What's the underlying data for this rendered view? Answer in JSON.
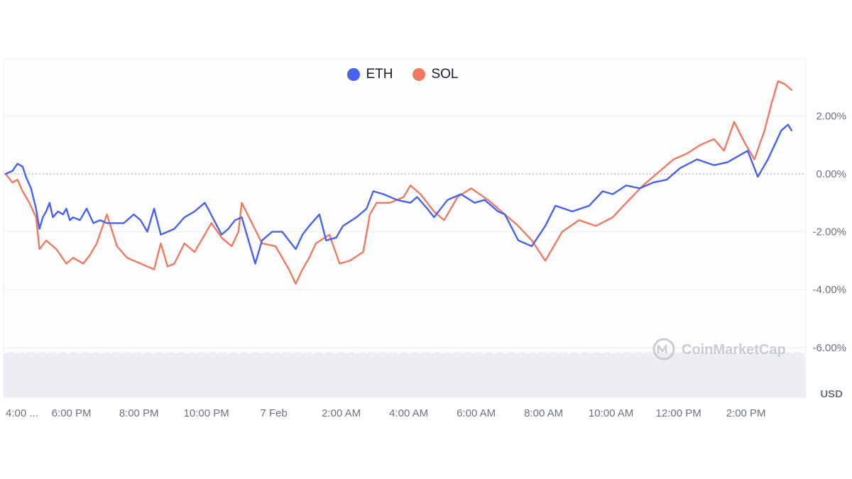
{
  "legend": [
    {
      "name": "ETH",
      "color": "#4861ef"
    },
    {
      "name": "SOL",
      "color": "#ef7a62"
    }
  ],
  "watermark": {
    "text": "CoinMarketCap",
    "icon": "coinmarketcap-logo-icon"
  },
  "y_unit_label": "USD",
  "chart_data": {
    "type": "line",
    "title": "",
    "x_tick_labels": [
      "4:00 ...",
      "6:00 PM",
      "8:00 PM",
      "10:00 PM",
      "7 Feb",
      "2:00 AM",
      "4:00 AM",
      "6:00 AM",
      "8:00 AM",
      "10:00 AM",
      "12:00 PM",
      "2:00 PM"
    ],
    "y_tick_labels": [
      "2.00%",
      "0.00%",
      "-2.00%",
      "-4.00%",
      "-6.00%"
    ],
    "y_ticks": [
      2,
      0,
      -2,
      -4,
      -6
    ],
    "ylim": [
      -7.8,
      4
    ],
    "xlim": [
      0,
      23.4
    ],
    "x_units": "hours since 4:00 PM",
    "reference_line": 0,
    "grid": true,
    "legend_position": "top-center",
    "series": [
      {
        "name": "ETH",
        "color": "#4861ef",
        "x": [
          0,
          0.2,
          0.35,
          0.5,
          0.6,
          0.75,
          0.9,
          1.0,
          1.1,
          1.2,
          1.3,
          1.4,
          1.55,
          1.7,
          1.8,
          1.9,
          2.0,
          2.2,
          2.4,
          2.6,
          2.8,
          3.0,
          3.2,
          3.5,
          3.8,
          4.0,
          4.2,
          4.4,
          4.6,
          4.8,
          5.0,
          5.3,
          5.6,
          5.9,
          6.0,
          6.4,
          6.6,
          6.8,
          7.0,
          7.4,
          7.6,
          7.9,
          8.2,
          8.6,
          8.8,
          9.0,
          9.3,
          9.5,
          9.8,
          10.0,
          10.4,
          10.7,
          10.9,
          11.2,
          11.6,
          12.0,
          12.2,
          12.5,
          12.7,
          13.1,
          13.5,
          13.9,
          14.2,
          14.6,
          14.8,
          15.2,
          15.6,
          16.0,
          16.3,
          16.8,
          17.3,
          17.7,
          18.0,
          18.4,
          18.8,
          19.2,
          19.6,
          20.0,
          20.5,
          21.0,
          21.4,
          22.0,
          22.3,
          22.6,
          22.8,
          23.0,
          23.2,
          23.3
        ],
        "values": [
          0.0,
          0.1,
          0.35,
          0.25,
          -0.1,
          -0.5,
          -1.2,
          -1.9,
          -1.5,
          -1.3,
          -1.0,
          -1.5,
          -1.3,
          -1.4,
          -1.2,
          -1.6,
          -1.5,
          -1.6,
          -1.2,
          -1.7,
          -1.6,
          -1.7,
          -1.7,
          -1.7,
          -1.4,
          -1.6,
          -2.0,
          -1.2,
          -2.1,
          -2.0,
          -1.9,
          -1.5,
          -1.3,
          -1.0,
          -1.2,
          -2.1,
          -1.9,
          -1.6,
          -1.5,
          -3.1,
          -2.3,
          -2.0,
          -2.0,
          -2.6,
          -2.1,
          -1.8,
          -1.4,
          -2.3,
          -2.2,
          -1.8,
          -1.5,
          -1.2,
          -0.6,
          -0.7,
          -0.9,
          -1.0,
          -0.8,
          -1.2,
          -1.5,
          -0.9,
          -0.7,
          -1.0,
          -0.9,
          -1.3,
          -1.4,
          -2.3,
          -2.5,
          -1.8,
          -1.1,
          -1.3,
          -1.1,
          -0.6,
          -0.7,
          -0.4,
          -0.5,
          -0.3,
          -0.2,
          0.2,
          0.5,
          0.3,
          0.4,
          0.8,
          -0.1,
          0.5,
          1.0,
          1.5,
          1.7,
          1.5
        ]
      },
      {
        "name": "SOL",
        "color": "#ef7a62",
        "x": [
          0,
          0.2,
          0.35,
          0.5,
          0.7,
          0.9,
          1.0,
          1.2,
          1.5,
          1.8,
          2.0,
          2.3,
          2.5,
          2.7,
          3.0,
          3.3,
          3.6,
          3.8,
          4.0,
          4.2,
          4.4,
          4.6,
          4.8,
          5.0,
          5.3,
          5.6,
          5.9,
          6.1,
          6.4,
          6.7,
          6.9,
          7.0,
          7.3,
          7.6,
          8.0,
          8.4,
          8.6,
          8.8,
          9.0,
          9.2,
          9.6,
          9.9,
          10.2,
          10.6,
          10.8,
          11.0,
          11.4,
          11.8,
          12.0,
          12.3,
          12.7,
          13.0,
          13.4,
          13.8,
          14.3,
          14.8,
          15.2,
          15.6,
          16.0,
          16.5,
          17.0,
          17.5,
          18.0,
          18.4,
          18.9,
          19.4,
          19.8,
          20.2,
          20.6,
          21.0,
          21.3,
          21.6,
          21.9,
          22.2,
          22.5,
          22.7,
          22.9,
          23.1,
          23.3
        ],
        "values": [
          0.0,
          -0.3,
          -0.2,
          -0.6,
          -1.0,
          -1.5,
          -2.6,
          -2.3,
          -2.6,
          -3.1,
          -2.9,
          -3.1,
          -2.8,
          -2.4,
          -1.4,
          -2.5,
          -2.9,
          -3.0,
          -3.1,
          -3.2,
          -3.3,
          -2.4,
          -3.2,
          -3.1,
          -2.4,
          -2.7,
          -2.1,
          -1.7,
          -2.2,
          -2.5,
          -2.0,
          -1.0,
          -1.7,
          -2.4,
          -2.5,
          -3.3,
          -3.8,
          -3.3,
          -2.9,
          -2.4,
          -2.1,
          -3.1,
          -3.0,
          -2.7,
          -1.4,
          -1.0,
          -1.0,
          -0.8,
          -0.4,
          -0.7,
          -1.3,
          -1.6,
          -0.8,
          -0.5,
          -0.9,
          -1.4,
          -1.8,
          -2.3,
          -3.0,
          -2.0,
          -1.6,
          -1.8,
          -1.5,
          -1.0,
          -0.4,
          0.1,
          0.5,
          0.7,
          1.0,
          1.2,
          0.8,
          1.8,
          1.1,
          0.5,
          1.5,
          2.4,
          3.2,
          3.1,
          2.9
        ]
      }
    ]
  }
}
